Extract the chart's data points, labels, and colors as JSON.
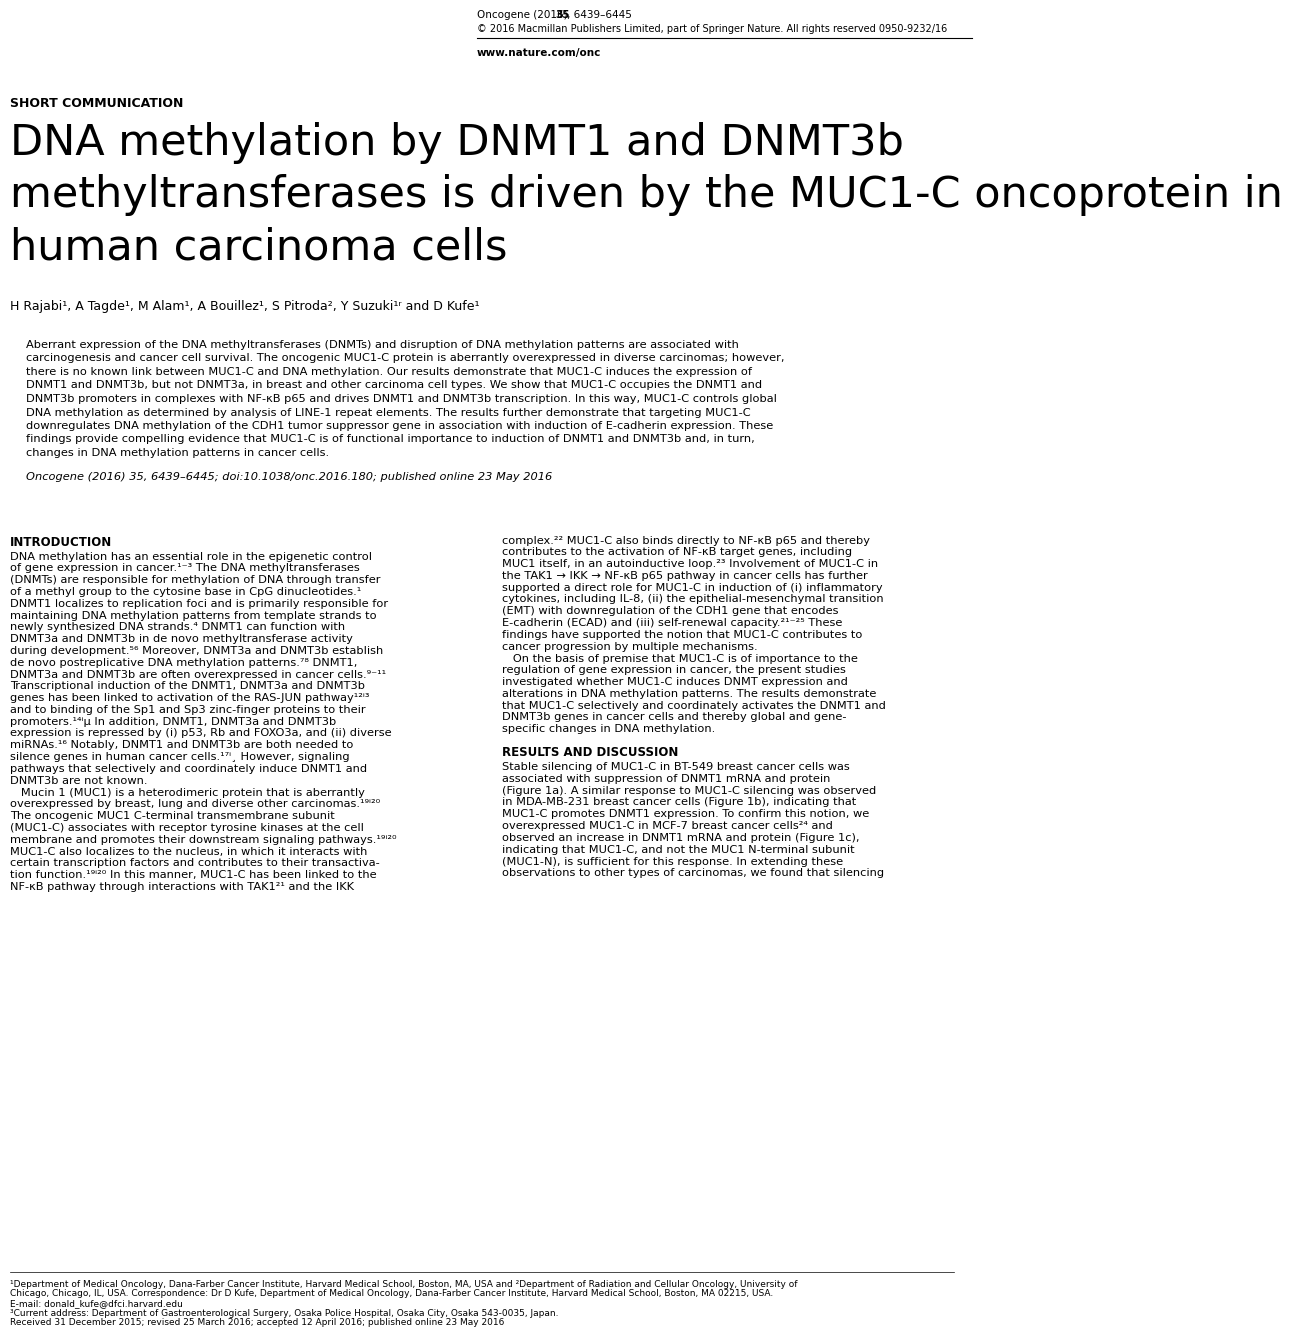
{
  "header_journal_plain": "Oncogene (2016) ",
  "header_volume": "35",
  "header_pages": ", 6439–6445",
  "header_copyright": "© 2016 Macmillan Publishers Limited, part of Springer Nature. All rights reserved 0950-9232/16",
  "header_url": "www.nature.com/onc",
  "section_label": "SHORT COMMUNICATION",
  "title_line1": "DNA methylation by DNMT1 and DNMT3b",
  "title_line2": "methyltransferases is driven by the MUC1-C oncoprotein in",
  "title_line3": "human carcinoma cells",
  "authors": "H Rajabi¹, A Tagde¹, M Alam¹, A Bouillez¹, S Pitroda², Y Suzuki¹ʳ and D Kufe¹",
  "abstract_lines": [
    "Aberrant expression of the DNA methyltransferases (DNMTs) and disruption of DNA methylation patterns are associated with",
    "carcinogenesis and cancer cell survival. The oncogenic MUC1-C protein is aberrantly overexpressed in diverse carcinomas; however,",
    "there is no known link between MUC1-C and DNA methylation. Our results demonstrate that MUC1-C induces the expression of",
    "DNMT1 and DNMT3b, but not DNMT3a, in breast and other carcinoma cell types. We show that MUC1-C occupies the DNMT1 and",
    "DNMT3b promoters in complexes with NF-κB p65 and drives DNMT1 and DNMT3b transcription. In this way, MUC1-C controls global",
    "DNA methylation as determined by analysis of LINE-1 repeat elements. The results further demonstrate that targeting MUC1-C",
    "downregulates DNA methylation of the CDH1 tumor suppressor gene in association with induction of E-cadherin expression. These",
    "findings provide compelling evidence that MUC1-C is of functional importance to induction of DNMT1 and DNMT3b and, in turn,",
    "changes in DNA methylation patterns in cancer cells."
  ],
  "abstract_citation": "Oncogene (2016) 35, 6439–6445; doi:10.1038/onc.2016.180; published online 23 May 2016",
  "intro_heading": "INTRODUCTION",
  "intro_col1_lines": [
    "DNA methylation has an essential role in the epigenetic control",
    "of gene expression in cancer.¹⁻³ The DNA methyltransferases",
    "(DNMTs) are responsible for methylation of DNA through transfer",
    "of a methyl group to the cytosine base in CpG dinucleotides.¹",
    "DNMT1 localizes to replication foci and is primarily responsible for",
    "maintaining DNA methylation patterns from template strands to",
    "newly synthesized DNA strands.⁴ DNMT1 can function with",
    "DNMT3a and DNMT3b in de novo methyltransferase activity",
    "during development.⁵⁶ Moreover, DNMT3a and DNMT3b establish",
    "de novo postreplicative DNA methylation patterns.⁷⁸ DNMT1,",
    "DNMT3a and DNMT3b are often overexpressed in cancer cells.⁹⁻¹¹",
    "Transcriptional induction of the DNMT1, DNMT3a and DNMT3b",
    "genes has been linked to activation of the RAS-JUN pathway¹²ⁱ³",
    "and to binding of the Sp1 and Sp3 zinc-finger proteins to their",
    "promoters.¹⁴ⁱµ In addition, DNMT1, DNMT3a and DNMT3b",
    "expression is repressed by (i) p53, Rb and FOXO3a, and (ii) diverse",
    "miRNAs.¹⁶ Notably, DNMT1 and DNMT3b are both needed to",
    "silence genes in human cancer cells.¹⁷ⁱ¸ However, signaling",
    "pathways that selectively and coordinately induce DNMT1 and",
    "DNMT3b are not known.",
    "   Mucin 1 (MUC1) is a heterodimeric protein that is aberrantly",
    "overexpressed by breast, lung and diverse other carcinomas.¹⁹ⁱ²⁰",
    "The oncogenic MUC1 C-terminal transmembrane subunit",
    "(MUC1-C) associates with receptor tyrosine kinases at the cell",
    "membrane and promotes their downstream signaling pathways.¹⁹ⁱ²⁰",
    "MUC1-C also localizes to the nucleus, in which it interacts with",
    "certain transcription factors and contributes to their transactiva-",
    "tion function.¹⁹ⁱ²⁰ In this manner, MUC1-C has been linked to the",
    "NF-κB pathway through interactions with TAK1²¹ and the IKK"
  ],
  "right_col_intro_lines": [
    "complex.²² MUC1-C also binds directly to NF-κB p65 and thereby",
    "contributes to the activation of NF-κB target genes, including",
    "MUC1 itself, in an autoinductive loop.²³ Involvement of MUC1-C in",
    "the TAK1 → IKK → NF-κB p65 pathway in cancer cells has further",
    "supported a direct role for MUC1-C in induction of (i) inflammatory",
    "cytokines, including IL-8, (ii) the epithelial-mesenchymal transition",
    "(EMT) with downregulation of the CDH1 gene that encodes",
    "E-cadherin (ECAD) and (iii) self-renewal capacity.²¹⁻²⁵ These",
    "findings have supported the notion that MUC1-C contributes to",
    "cancer progression by multiple mechanisms.",
    "   On the basis of premise that MUC1-C is of importance to the",
    "regulation of gene expression in cancer, the present studies",
    "investigated whether MUC1-C induces DNMT expression and",
    "alterations in DNA methylation patterns. The results demonstrate",
    "that MUC1-C selectively and coordinately activates the DNMT1 and",
    "DNMT3b genes in cancer cells and thereby global and gene-",
    "specific changes in DNA methylation."
  ],
  "results_heading": "RESULTS AND DISCUSSION",
  "results_col2_lines": [
    "Stable silencing of MUC1-C in BT-549 breast cancer cells was",
    "associated with suppression of DNMT1 mRNA and protein",
    "(Figure 1a). A similar response to MUC1-C silencing was observed",
    "in MDA-MB-231 breast cancer cells (Figure 1b), indicating that",
    "MUC1-C promotes DNMT1 expression. To confirm this notion, we",
    "overexpressed MUC1-C in MCF-7 breast cancer cells²⁴ and",
    "observed an increase in DNMT1 mRNA and protein (Figure 1c),",
    "indicating that MUC1-C, and not the MUC1 N-terminal subunit",
    "(MUC1-N), is sufficient for this response. In extending these",
    "observations to other types of carcinomas, we found that silencing"
  ],
  "footnote1": "¹Department of Medical Oncology, Dana-Farber Cancer Institute, Harvard Medical School, Boston, MA, USA and ²Department of Radiation and Cellular Oncology, University of",
  "footnote1b": "Chicago, Chicago, IL, USA. Correspondence: Dr D Kufe, Department of Medical Oncology, Dana-Farber Cancer Institute, Harvard Medical School, Boston, MA 02215, USA.",
  "footnote2": "E-mail: donald_kufe@dfci.harvard.edu",
  "footnote3": "³Current address: Department of Gastroenterological Surgery, Osaka Police Hospital, Osaka City, Osaka 543-0035, Japan.",
  "footnote4": "Received 31 December 2015; revised 25 March 2016; accepted 12 April 2016; published online 23 May 2016",
  "bg_color": "#ffffff",
  "abstract_bg": "#ebebeb"
}
